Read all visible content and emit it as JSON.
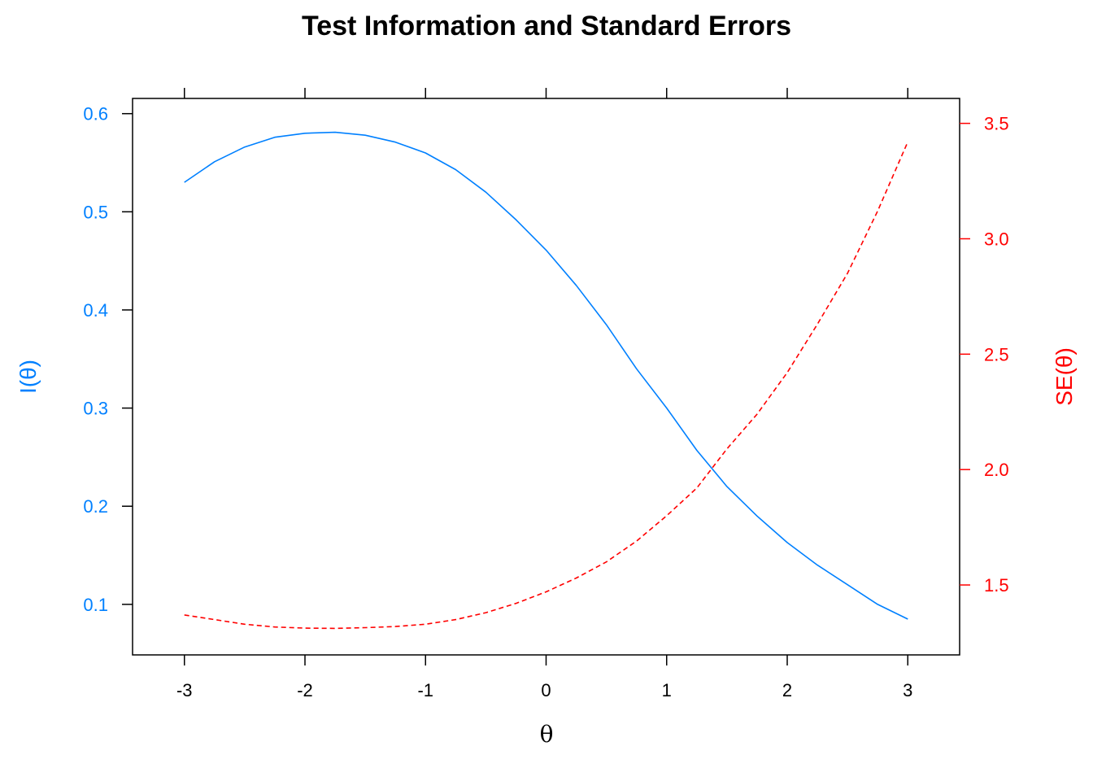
{
  "chart_data": {
    "type": "line",
    "title": "Test Information and Standard Errors",
    "xlabel": "θ",
    "ylabel_left": "I(θ)",
    "ylabel_right": "SE(θ)",
    "xlim": [
      -3.43,
      3.43
    ],
    "ylim_left": [
      0.0485,
      0.6155
    ],
    "ylim_right": [
      1.197,
      3.608
    ],
    "x_ticks": [
      -3,
      -2,
      -1,
      0,
      1,
      2,
      3
    ],
    "x_tick_labels": [
      "-3",
      "-2",
      "-1",
      "0",
      "1",
      "2",
      "3"
    ],
    "y_left_ticks": [
      0.1,
      0.2,
      0.3,
      0.4,
      0.5,
      0.6
    ],
    "y_left_tick_labels": [
      "0.1",
      "0.2",
      "0.3",
      "0.4",
      "0.5",
      "0.6"
    ],
    "y_right_ticks": [
      1.5,
      2.0,
      2.5,
      3.0,
      3.5
    ],
    "y_right_tick_labels": [
      "1.5",
      "2.0",
      "2.5",
      "3.0",
      "3.5"
    ],
    "grid": false,
    "legend": "none",
    "colors": {
      "info": "#0080FF",
      "se": "#FF0000",
      "frame": "#000000"
    },
    "series": [
      {
        "axis": "left",
        "line_style": "solid",
        "x": [
          -3.0,
          -2.75,
          -2.5,
          -2.25,
          -2.0,
          -1.75,
          -1.5,
          -1.25,
          -1.0,
          -0.75,
          -0.5,
          -0.25,
          0.0,
          0.25,
          0.5,
          0.75,
          1.0,
          1.25,
          1.5,
          1.75,
          2.0,
          2.25,
          2.5,
          2.75,
          3.0
        ],
        "y": [
          0.53,
          0.551,
          0.566,
          0.576,
          0.58,
          0.581,
          0.578,
          0.571,
          0.56,
          0.543,
          0.52,
          0.492,
          0.461,
          0.425,
          0.385,
          0.34,
          0.3,
          0.257,
          0.22,
          0.19,
          0.163,
          0.14,
          0.12,
          0.1,
          0.085
        ]
      },
      {
        "axis": "right",
        "line_style": "dashed",
        "x": [
          -3.0,
          -2.75,
          -2.5,
          -2.25,
          -2.0,
          -1.75,
          -1.5,
          -1.25,
          -1.0,
          -0.75,
          -0.5,
          -0.25,
          0.0,
          0.25,
          0.5,
          0.75,
          1.0,
          1.25,
          1.5,
          1.75,
          2.0,
          2.25,
          2.5,
          2.75,
          3.0
        ],
        "y": [
          1.37,
          1.35,
          1.33,
          1.318,
          1.313,
          1.312,
          1.315,
          1.32,
          1.33,
          1.35,
          1.38,
          1.42,
          1.47,
          1.53,
          1.6,
          1.69,
          1.8,
          1.92,
          2.09,
          2.24,
          2.42,
          2.63,
          2.85,
          3.12,
          3.42
        ]
      }
    ]
  }
}
